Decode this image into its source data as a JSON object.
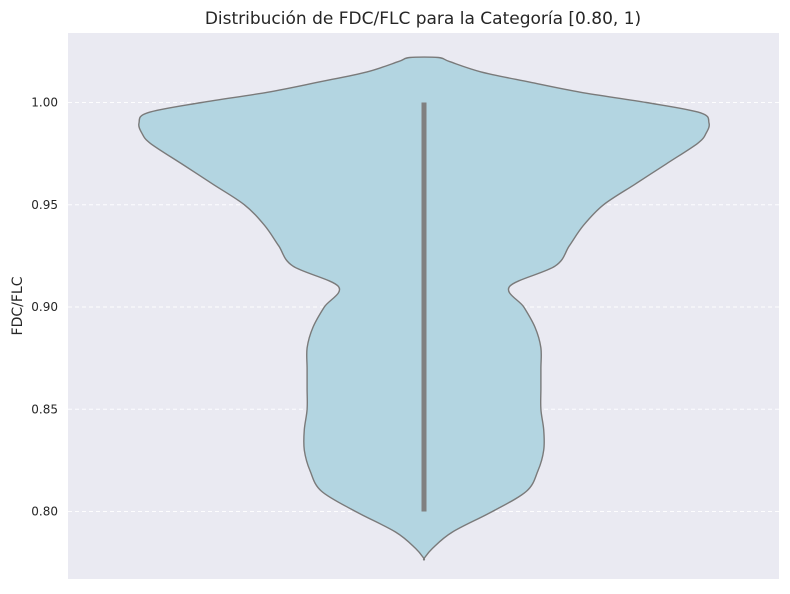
{
  "chart_data": {
    "type": "violin",
    "title": "Distribución de FDC/FLC para la Categoría [0.80, 1)",
    "xlabel": "",
    "ylabel": "FDC/FLC",
    "ylim": [
      0.767,
      1.034
    ],
    "yticks": [
      0.8,
      0.85,
      0.9,
      0.95,
      1.0
    ],
    "ytick_labels": [
      "0.80",
      "0.85",
      "0.90",
      "0.95",
      "1.00"
    ],
    "grid": true,
    "colors": {
      "background": "#eaeaf2",
      "fill": "#b3d5e1",
      "stroke": "#7a7a7a",
      "inner_line": "#808080",
      "grid": "#ffffff"
    },
    "series": [
      {
        "range": [
          0.8,
          1.0
        ],
        "density_profile": [
          {
            "y": 0.777,
            "w": 0.0
          },
          {
            "y": 0.782,
            "w": 0.03
          },
          {
            "y": 0.79,
            "w": 0.1
          },
          {
            "y": 0.8,
            "w": 0.24
          },
          {
            "y": 0.81,
            "w": 0.36
          },
          {
            "y": 0.82,
            "w": 0.4
          },
          {
            "y": 0.83,
            "w": 0.42
          },
          {
            "y": 0.84,
            "w": 0.42
          },
          {
            "y": 0.85,
            "w": 0.41
          },
          {
            "y": 0.86,
            "w": 0.41
          },
          {
            "y": 0.87,
            "w": 0.41
          },
          {
            "y": 0.88,
            "w": 0.41
          },
          {
            "y": 0.89,
            "w": 0.39
          },
          {
            "y": 0.9,
            "w": 0.35
          },
          {
            "y": 0.91,
            "w": 0.3
          },
          {
            "y": 0.92,
            "w": 0.46
          },
          {
            "y": 0.93,
            "w": 0.51
          },
          {
            "y": 0.94,
            "w": 0.56
          },
          {
            "y": 0.95,
            "w": 0.63
          },
          {
            "y": 0.96,
            "w": 0.74
          },
          {
            "y": 0.97,
            "w": 0.85
          },
          {
            "y": 0.98,
            "w": 0.96
          },
          {
            "y": 0.985,
            "w": 0.99
          },
          {
            "y": 0.99,
            "w": 1.0
          },
          {
            "y": 0.995,
            "w": 0.97
          },
          {
            "y": 1.0,
            "w": 0.78
          },
          {
            "y": 1.005,
            "w": 0.55
          },
          {
            "y": 1.01,
            "w": 0.37
          },
          {
            "y": 1.015,
            "w": 0.2
          },
          {
            "y": 1.02,
            "w": 0.09
          },
          {
            "y": 1.022,
            "w": 0.05
          }
        ]
      }
    ]
  }
}
